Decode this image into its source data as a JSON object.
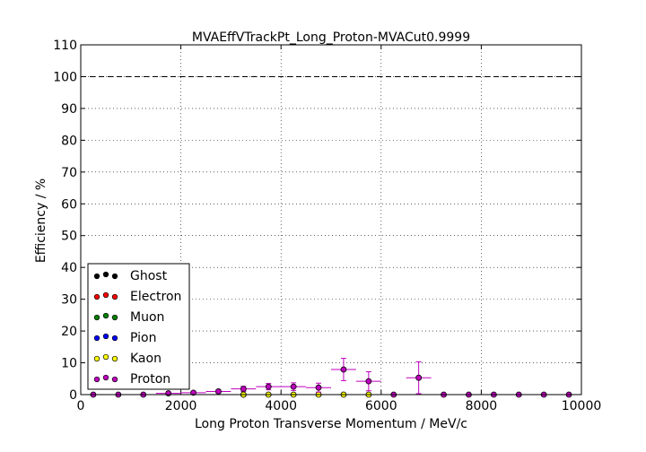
{
  "chart_data": {
    "type": "scatter",
    "title": "MVAEffVTrackPt_Long_Proton-MVACut0.9999",
    "xlabel": "Long Proton Transverse Momentum / MeV/c",
    "ylabel": "Efficiency / %",
    "xlim": [
      0,
      10000
    ],
    "ylim": [
      0,
      110
    ],
    "xticks": [
      0,
      2000,
      4000,
      6000,
      8000,
      10000
    ],
    "yticks": [
      0,
      10,
      20,
      30,
      40,
      50,
      60,
      70,
      80,
      90,
      100,
      110
    ],
    "grid": true,
    "reference_line": 100,
    "legend_position": "lower-left",
    "x_bin_centers": [
      250,
      750,
      1250,
      1750,
      2250,
      2750,
      3250,
      3750,
      4250,
      4750,
      5250,
      5750,
      6250,
      6750,
      7250,
      7750,
      8250,
      8750,
      9250,
      9750
    ],
    "x_bin_halfwidth": 250,
    "series": [
      {
        "name": "Ghost",
        "color": "#000000",
        "x": [
          3250
        ],
        "y": [
          0
        ]
      },
      {
        "name": "Electron",
        "color": "#ff0000",
        "x": [],
        "y": []
      },
      {
        "name": "Muon",
        "color": "#008000",
        "x": [],
        "y": []
      },
      {
        "name": "Pion",
        "color": "#0000ff",
        "x": [],
        "y": []
      },
      {
        "name": "Kaon",
        "color": "#ffff00",
        "x": [
          3250,
          3750,
          4250,
          4750,
          5250,
          5750
        ],
        "y": [
          0,
          0,
          0,
          0,
          0,
          0
        ]
      },
      {
        "name": "Proton",
        "color": "#bf00bf",
        "x": [
          250,
          750,
          1250,
          1750,
          2250,
          2750,
          3250,
          3750,
          4250,
          4750,
          5250,
          5750,
          6250,
          6750,
          7250,
          7750,
          8250,
          8750,
          9250,
          9750
        ],
        "y": [
          0,
          0,
          0,
          0.4,
          0.6,
          1.0,
          1.8,
          2.5,
          2.5,
          2.2,
          7.9,
          4.2,
          0,
          5.3,
          0,
          0,
          0,
          0,
          0,
          0
        ],
        "yerr": [
          0,
          0,
          0,
          0.3,
          0.4,
          0.5,
          0.8,
          1.0,
          1.2,
          1.4,
          3.5,
          3.0,
          0,
          5.0,
          0,
          0,
          0,
          0,
          0,
          0
        ]
      }
    ]
  }
}
